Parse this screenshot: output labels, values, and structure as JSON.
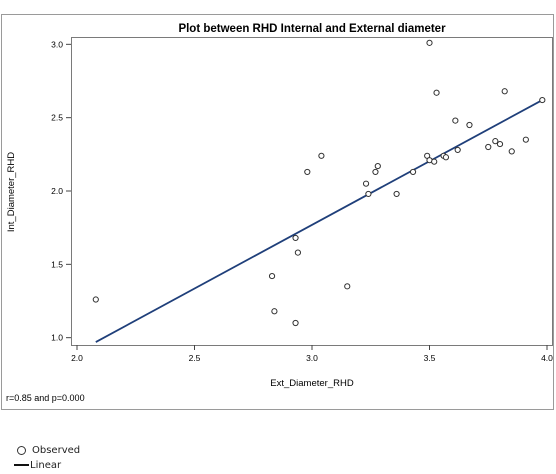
{
  "chart_data": {
    "type": "scatter",
    "title": "Plot between RHD Internal and External diameter",
    "xlabel": "Ext_Diameter_RHD",
    "ylabel": "Int_Diameter_RHD",
    "xlim": [
      2.0,
      4.0
    ],
    "ylim": [
      0.95,
      3.05
    ],
    "xticks": [
      "2.0",
      "2.5",
      "3.0",
      "3.5",
      "4.0"
    ],
    "yticks": [
      "1.0",
      "1.5",
      "2.0",
      "2.5",
      "3.0"
    ],
    "grid": false,
    "annotation": "r=0.85 and p=0.000",
    "series": [
      {
        "name": "Observed",
        "marker": "open-circle",
        "color": "#333333",
        "points": [
          [
            2.08,
            1.26
          ],
          [
            2.83,
            1.42
          ],
          [
            2.84,
            1.18
          ],
          [
            2.93,
            1.68
          ],
          [
            2.93,
            1.1
          ],
          [
            2.94,
            1.58
          ],
          [
            2.98,
            2.13
          ],
          [
            3.04,
            2.24
          ],
          [
            3.15,
            1.35
          ],
          [
            3.23,
            2.05
          ],
          [
            3.24,
            1.98
          ],
          [
            3.27,
            2.13
          ],
          [
            3.28,
            2.17
          ],
          [
            3.36,
            1.98
          ],
          [
            3.43,
            2.13
          ],
          [
            3.49,
            2.24
          ],
          [
            3.5,
            2.21
          ],
          [
            3.5,
            3.01
          ],
          [
            3.52,
            2.2
          ],
          [
            3.53,
            2.67
          ],
          [
            3.56,
            2.24
          ],
          [
            3.57,
            2.23
          ],
          [
            3.61,
            2.48
          ],
          [
            3.62,
            2.28
          ],
          [
            3.67,
            2.45
          ],
          [
            3.75,
            2.3
          ],
          [
            3.78,
            2.34
          ],
          [
            3.8,
            2.32
          ],
          [
            3.82,
            2.68
          ],
          [
            3.85,
            2.27
          ],
          [
            3.91,
            2.35
          ],
          [
            3.98,
            2.62
          ]
        ]
      },
      {
        "name": "Linear",
        "type": "line",
        "color": "#1f3f7a",
        "points": [
          [
            2.08,
            0.97
          ],
          [
            3.98,
            2.62
          ]
        ]
      }
    ],
    "legend": {
      "position": "bottom-left",
      "entries": [
        "Observed",
        "Linear"
      ]
    }
  }
}
